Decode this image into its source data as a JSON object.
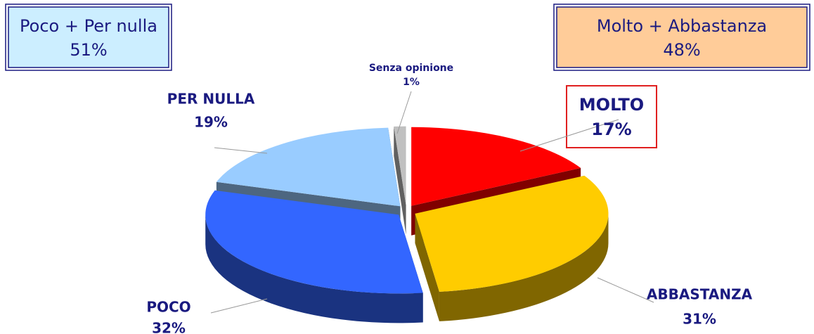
{
  "chart_data": {
    "type": "pie",
    "categories": [
      "MOLTO",
      "ABBASTANZA",
      "POCO",
      "PER NULLA",
      "Senza opinione"
    ],
    "values": [
      17,
      31,
      32,
      19,
      1
    ],
    "value_labels": [
      "17%",
      "31%",
      "32%",
      "19%",
      "1%"
    ],
    "colors": [
      "#ff0000",
      "#ffcc00",
      "#3366ff",
      "#99ccff",
      "#c0c0c0"
    ],
    "annotations": [
      {
        "text": "Poco + Per nulla",
        "value_label": "51%"
      },
      {
        "text": "Molto + Abbastanza",
        "value_label": "48%"
      }
    ]
  }
}
